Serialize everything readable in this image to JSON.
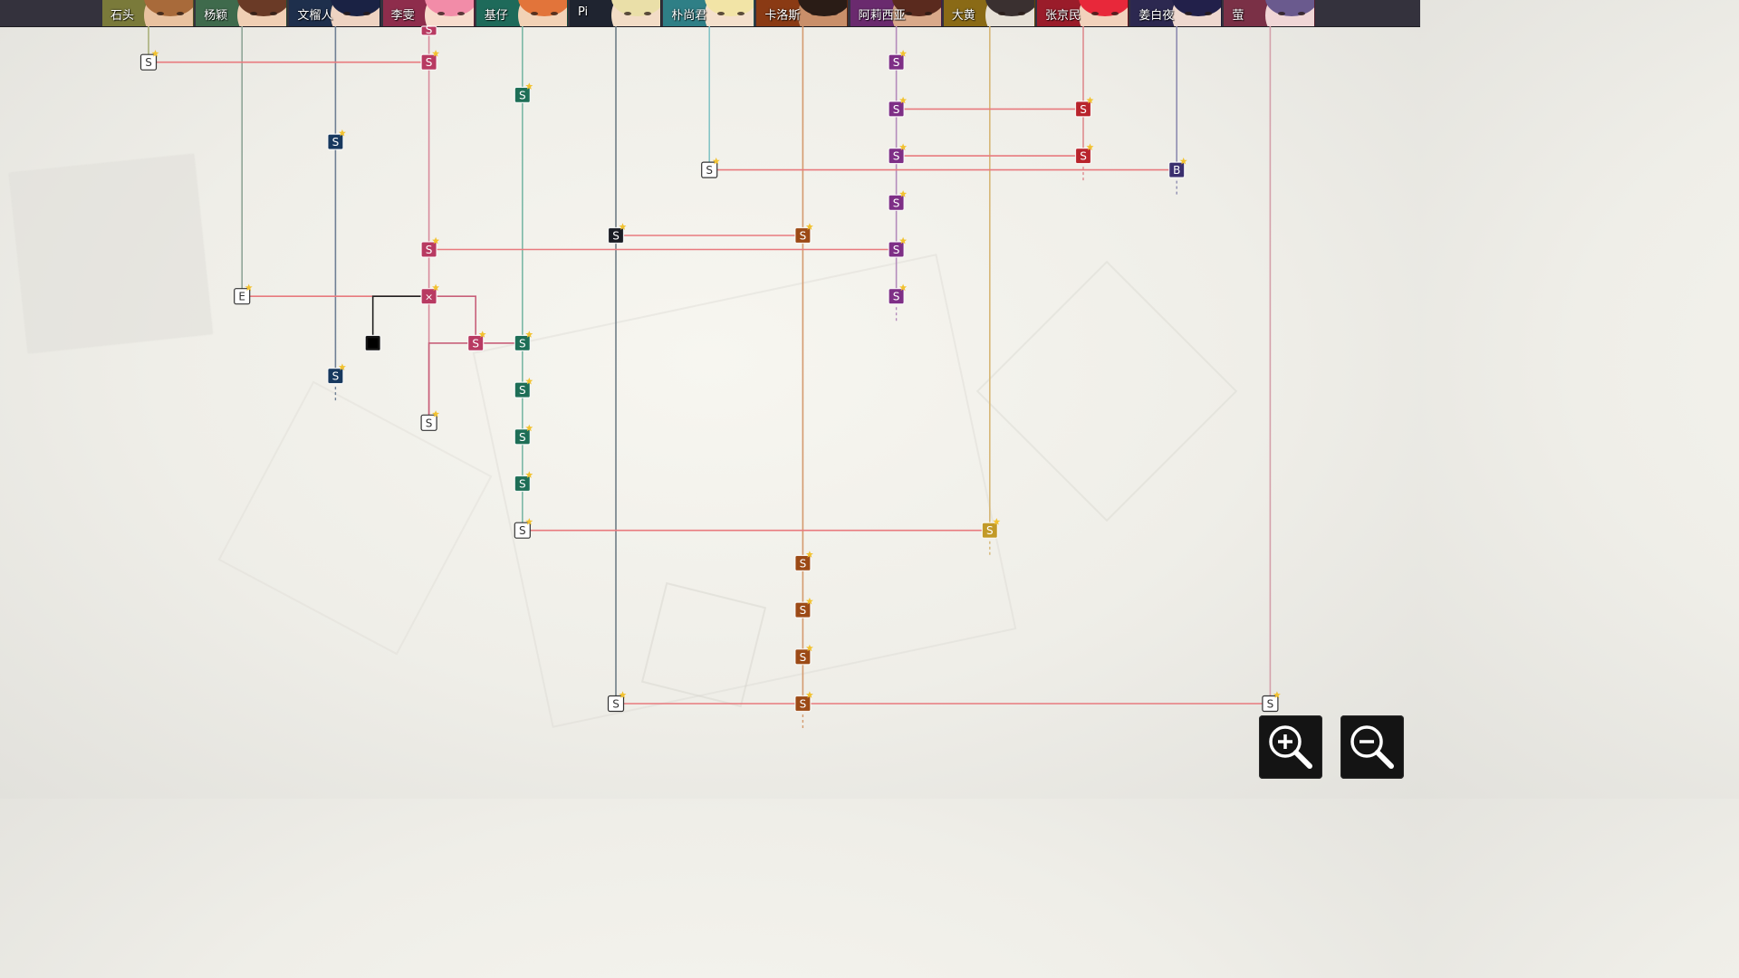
{
  "characters": [
    {
      "id": "shitou",
      "name": "石头",
      "tab_color": "#7a7a3a",
      "lane_color": "#a9b07a",
      "hair": "#a86a3a",
      "skin": "#e9c2a0"
    },
    {
      "id": "yangying",
      "name": "杨颖",
      "tab_color": "#3f6a4c",
      "lane_color": "#8fa597",
      "hair": "#6a3a26",
      "skin": "#f0cfb4"
    },
    {
      "id": "wenliuren",
      "name": "文榴人",
      "tab_color": "#1e2f4c",
      "lane_color": "#6f7f94",
      "hair": "#1a2244",
      "skin": "#eed3c2"
    },
    {
      "id": "liwen",
      "name": "李雯",
      "tab_color": "#8e2d4c",
      "lane_color": "#d88b9c",
      "hair": "#f28ca8",
      "skin": "#f7dccd"
    },
    {
      "id": "jizai",
      "name": "基仔",
      "tab_color": "#1e6a5a",
      "lane_color": "#7bb8a6",
      "hair": "#e2743a",
      "skin": "#f2d2b6"
    },
    {
      "id": "pi",
      "name": "Pi",
      "tab_color": "#1f2430",
      "lane_color": "#6f7d86",
      "hair": "#eadfa8",
      "skin": "#f2dcc6"
    },
    {
      "id": "piaoshangjun",
      "name": "朴尚君",
      "tab_color": "#2f7f86",
      "lane_color": "#86c4c6",
      "hair": "#f2e4a6",
      "skin": "#f4e0cc"
    },
    {
      "id": "kaluosi",
      "name": "卡洛斯",
      "tab_color": "#8a3a14",
      "lane_color": "#d49a6e",
      "hair": "#2a1c16",
      "skin": "#c98f6a"
    },
    {
      "id": "aliciya",
      "name": "阿莉西亚",
      "tab_color": "#6a2a6e",
      "lane_color": "#b48bbb",
      "hair": "#5a2a1e",
      "skin": "#d9a98a"
    },
    {
      "id": "dahuang",
      "name": "大黄",
      "tab_color": "#8a6a16",
      "lane_color": "#d6b777",
      "hair": "#3a3030",
      "skin": "#e6e0d6"
    },
    {
      "id": "zhangjingmin",
      "name": "张京民",
      "tab_color": "#9a1c2a",
      "lane_color": "#de8b8e",
      "hair": "#e8283a",
      "skin": "#f2d2bc"
    },
    {
      "id": "jiangbaiye",
      "name": "姜白夜",
      "tab_color": "#2c2850",
      "lane_color": "#8e8cb0",
      "hair": "#22204a",
      "skin": "#eed8cf"
    },
    {
      "id": "ying",
      "name": "萤",
      "tab_color": "#7a3046",
      "lane_color": "#d4a0aa",
      "hair": "#6a5a8e",
      "skin": "#f0d6d6"
    }
  ],
  "node_colors": {
    "white": "#ffffff",
    "shitou": "#7a7a3a",
    "yangying": "#3f6a4c",
    "wenliuren": "#17385e",
    "liwen": "#b83a62",
    "jizai": "#1e6e56",
    "pi": "#1a1d24",
    "piaoshangjun": "#2f7f86",
    "kaluosi": "#9c4a16",
    "aliciya": "#7e2f86",
    "dahuang": "#c29a28",
    "zhangjingmin": "#b8242c",
    "jiangbaiye": "#3a2f6e",
    "locked": "#141414"
  },
  "link_color": "#e87a7e",
  "branch_color": "#c8607a",
  "star_color": "#f2c230",
  "nodes": [
    {
      "lane": "shitou",
      "label": "S",
      "row": 1,
      "style": "white"
    },
    {
      "lane": "yangying",
      "label": "E",
      "row": 6,
      "style": "white"
    },
    {
      "lane": "wenliuren",
      "label": "S",
      "row": 2.7,
      "style": "wenliuren"
    },
    {
      "lane": "wenliuren",
      "label": "S",
      "row": 7.7,
      "style": "wenliuren",
      "continues": true
    },
    {
      "lane": "liwen",
      "label": "S",
      "row": 0.3,
      "style": "liwen",
      "partial": true
    },
    {
      "lane": "liwen",
      "label": "S",
      "row": 1,
      "style": "liwen"
    },
    {
      "lane": "liwen",
      "label": "S",
      "row": 5,
      "style": "liwen"
    },
    {
      "lane": "liwen",
      "label": "×",
      "row": 6,
      "style": "liwen"
    },
    {
      "lane": "liwen",
      "label": "S",
      "row": 8.7,
      "style": "white"
    },
    {
      "lane": "jizai",
      "label": "S",
      "row": 1.7,
      "style": "jizai"
    },
    {
      "lane": "jizai",
      "label": "S",
      "row": 7,
      "style": "jizai"
    },
    {
      "lane": "jizai",
      "label": "S",
      "row": 8,
      "style": "jizai"
    },
    {
      "lane": "jizai",
      "label": "S",
      "row": 9,
      "style": "jizai"
    },
    {
      "lane": "jizai",
      "label": "S",
      "row": 10,
      "style": "jizai"
    },
    {
      "lane": "jizai",
      "label": "S",
      "row": 11,
      "style": "white"
    },
    {
      "lane": "pi",
      "label": "S",
      "row": 4.7,
      "style": "pi"
    },
    {
      "lane": "pi",
      "label": "S",
      "row": 14.7,
      "style": "white"
    },
    {
      "lane": "piaoshangjun",
      "label": "S",
      "row": 3.3,
      "style": "white"
    },
    {
      "lane": "kaluosi",
      "label": "S",
      "row": 4.7,
      "style": "kaluosi"
    },
    {
      "lane": "kaluosi",
      "label": "S",
      "row": 11.7,
      "style": "kaluosi"
    },
    {
      "lane": "kaluosi",
      "label": "S",
      "row": 12.7,
      "style": "kaluosi"
    },
    {
      "lane": "kaluosi",
      "label": "S",
      "row": 13.7,
      "style": "kaluosi"
    },
    {
      "lane": "kaluosi",
      "label": "S",
      "row": 14.7,
      "style": "kaluosi",
      "continues": true
    },
    {
      "lane": "aliciya",
      "label": "S",
      "row": 1,
      "style": "aliciya"
    },
    {
      "lane": "aliciya",
      "label": "S",
      "row": 2,
      "style": "aliciya"
    },
    {
      "lane": "aliciya",
      "label": "S",
      "row": 3,
      "style": "aliciya"
    },
    {
      "lane": "aliciya",
      "label": "S",
      "row": 4,
      "style": "aliciya"
    },
    {
      "lane": "aliciya",
      "label": "S",
      "row": 5,
      "style": "aliciya"
    },
    {
      "lane": "aliciya",
      "label": "S",
      "row": 6,
      "style": "aliciya",
      "continues": true
    },
    {
      "lane": "dahuang",
      "label": "S",
      "row": 11,
      "style": "dahuang",
      "continues": true
    },
    {
      "lane": "zhangjingmin",
      "label": "S",
      "row": 2,
      "style": "zhangjingmin"
    },
    {
      "lane": "zhangjingmin",
      "label": "S",
      "row": 3,
      "style": "zhangjingmin",
      "continues": true
    },
    {
      "lane": "jiangbaiye",
      "label": "B",
      "row": 3.3,
      "style": "jiangbaiye",
      "continues": true
    },
    {
      "lane": "ying",
      "label": "S",
      "row": 14.7,
      "style": "white"
    }
  ],
  "extra_nodes": [
    {
      "between": [
        "liwen",
        "jizai"
      ],
      "label": "S",
      "row": 7,
      "style": "liwen"
    },
    {
      "between": [
        "yangying",
        "liwen"
      ],
      "label": "",
      "row": 7,
      "style": "locked"
    }
  ],
  "links": [
    {
      "from": "shitou",
      "to": "liwen",
      "row": 1
    },
    {
      "from": "aliciya",
      "to": "zhangjingmin",
      "row": 2
    },
    {
      "from": "aliciya",
      "to": "zhangjingmin",
      "row": 3
    },
    {
      "from": "piaoshangjun",
      "to": "jiangbaiye",
      "row": 3.3
    },
    {
      "from": "pi",
      "to": "kaluosi",
      "row": 4.7
    },
    {
      "from": "liwen",
      "to": "aliciya",
      "row": 5
    },
    {
      "from": "yangying",
      "to": "liwen",
      "row": 6
    },
    {
      "from": "jizai",
      "to": "dahuang",
      "row": 11
    },
    {
      "from": "pi",
      "to": "ying",
      "row": 14.7
    }
  ],
  "zoom": {
    "in_icon": "zoom-in-icon",
    "out_icon": "zoom-out-icon"
  }
}
